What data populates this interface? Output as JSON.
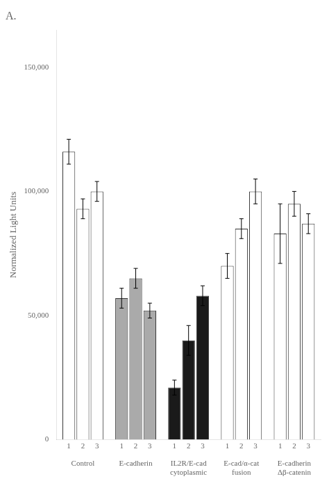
{
  "chart_data": {
    "type": "bar",
    "title": "A.",
    "ylabel": "Normalized Light Units",
    "categories": [
      "Control",
      "E-cadherin",
      "IL2R/E-cad\ncytoplasmic",
      "E-cad/α-cat\nfusion",
      "E-cadherin\nΔβ-catenin"
    ],
    "series": [
      {
        "name": "1",
        "colors": [
          "#ffffff",
          "#aaaaaa",
          "#1a1a1a",
          "#ffffff",
          "#ffffff"
        ],
        "values": [
          116000,
          57000,
          21000,
          70000,
          83000
        ],
        "errors": [
          5000,
          4000,
          3000,
          5000,
          12000
        ]
      },
      {
        "name": "2",
        "colors": [
          "#ffffff",
          "#aaaaaa",
          "#1a1a1a",
          "#ffffff",
          "#ffffff"
        ],
        "values": [
          93000,
          65000,
          40000,
          85000,
          95000
        ],
        "errors": [
          4000,
          4000,
          6000,
          4000,
          5000
        ]
      },
      {
        "name": "3",
        "colors": [
          "#ffffff",
          "#aaaaaa",
          "#1a1a1a",
          "#ffffff",
          "#ffffff"
        ],
        "values": [
          100000,
          52000,
          58000,
          100000,
          87000
        ],
        "errors": [
          4000,
          3000,
          4000,
          5000,
          4000
        ]
      }
    ],
    "ylim": [
      0,
      165000
    ],
    "yticks": [
      0,
      {
        "value": 50000,
        "label": "50,000"
      },
      {
        "value": 100000,
        "label": "100,000"
      },
      {
        "value": 150000,
        "label": "150,000"
      }
    ],
    "grid": false
  }
}
